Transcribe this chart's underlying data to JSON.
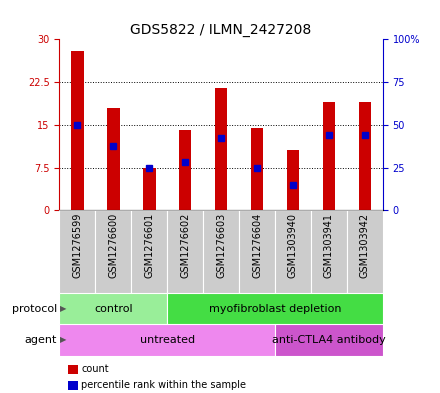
{
  "title": "GDS5822 / ILMN_2427208",
  "samples": [
    "GSM1276599",
    "GSM1276600",
    "GSM1276601",
    "GSM1276602",
    "GSM1276603",
    "GSM1276604",
    "GSM1303940",
    "GSM1303941",
    "GSM1303942"
  ],
  "counts": [
    28.0,
    18.0,
    7.5,
    14.0,
    21.5,
    14.5,
    10.5,
    19.0,
    19.0
  ],
  "percentiles": [
    50.0,
    37.5,
    25.0,
    28.0,
    42.0,
    25.0,
    15.0,
    44.0,
    44.0
  ],
  "ylim_left": [
    0,
    30
  ],
  "ylim_right": [
    0,
    100
  ],
  "yticks_left": [
    0,
    7.5,
    15,
    22.5,
    30
  ],
  "yticks_right": [
    0,
    25,
    50,
    75,
    100
  ],
  "ytick_labels_left": [
    "0",
    "7.5",
    "15",
    "22.5",
    "30"
  ],
  "ytick_labels_right": [
    "0",
    "25",
    "50",
    "75",
    "100%"
  ],
  "bar_color": "#cc0000",
  "percentile_color": "#0000cc",
  "bar_width": 0.35,
  "protocol_labels": [
    {
      "text": "control",
      "start": 0,
      "end": 3,
      "color": "#99ee99"
    },
    {
      "text": "myofibroblast depletion",
      "start": 3,
      "end": 9,
      "color": "#44dd44"
    }
  ],
  "agent_labels": [
    {
      "text": "untreated",
      "start": 0,
      "end": 6,
      "color": "#ee88ee"
    },
    {
      "text": "anti-CTLA4 antibody",
      "start": 6,
      "end": 9,
      "color": "#cc55cc"
    }
  ],
  "protocol_row_label": "protocol",
  "agent_row_label": "agent",
  "legend_count_label": "count",
  "legend_percentile_label": "percentile rank within the sample",
  "plot_bg_color": "#ffffff",
  "label_bg_color": "#cccccc",
  "title_fontsize": 10,
  "tick_fontsize": 7,
  "label_fontsize": 7,
  "row_label_fontsize": 8,
  "legend_fontsize": 7
}
